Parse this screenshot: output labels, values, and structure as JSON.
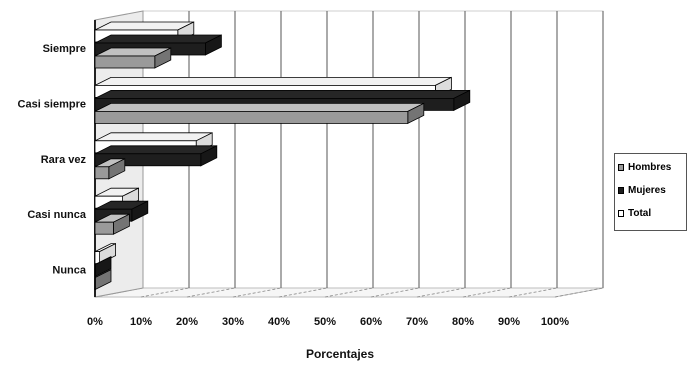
{
  "chart_data": {
    "type": "bar",
    "orientation": "horizontal",
    "style": "3d",
    "categories": [
      "Siempre",
      "Casi siempre",
      "Rara vez",
      "Casi nunca",
      "Nunca"
    ],
    "series": [
      {
        "name": "Hombres",
        "values": [
          13,
          68,
          3,
          4,
          0
        ],
        "color": "#9a9a9a"
      },
      {
        "name": "Mujeres",
        "values": [
          24,
          78,
          23,
          8,
          0
        ],
        "color": "#1e1e1e"
      },
      {
        "name": "Total",
        "values": [
          18,
          74,
          22,
          6,
          1
        ],
        "color": "#ffffff"
      }
    ],
    "xlabel": "Porcentajes",
    "xticks": [
      "0%",
      "10%",
      "20%",
      "30%",
      "40%",
      "50%",
      "60%",
      "70%",
      "80%",
      "90%",
      "100%"
    ],
    "xlim": [
      0,
      100
    ],
    "grid": true,
    "legend_position": "right"
  }
}
